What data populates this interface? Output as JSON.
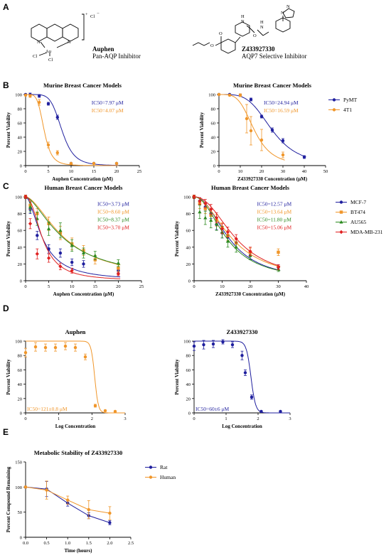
{
  "panels": {
    "A": "A",
    "B": "B",
    "C": "C",
    "D": "D",
    "E": "E"
  },
  "compounds": {
    "auphen": {
      "name": "Auphen",
      "desc": "Pan-AQP Inhibitor",
      "charge": "+",
      "counter": "Cl",
      "atom_au": "Au",
      "atom_cl": "Cl",
      "atom_n": "N"
    },
    "z": {
      "name": "Z433927330",
      "desc": "AQP7 Selective Inhibitor",
      "atom_o": "O",
      "atom_n": "N",
      "atom_h": "H"
    }
  },
  "chart_data": [
    {
      "id": "b1",
      "type": "scatter",
      "title": "Murine Breast Cancer Models",
      "xlabel": "Auphen Concentration (μM)",
      "ylabel": "Percent Viability",
      "xlim": [
        0,
        25
      ],
      "ylim": [
        0,
        100
      ],
      "xticks": [
        0,
        5,
        10,
        15,
        20,
        25
      ],
      "yticks": [
        0,
        20,
        40,
        60,
        80,
        100
      ],
      "series": [
        {
          "name": "PyMT",
          "color": "#1f1f9e",
          "ic50_label": "IC50=7.97 μM",
          "ic50": 7.97,
          "hill": 6,
          "x": [
            0,
            1,
            3,
            5,
            7,
            10,
            15,
            20
          ],
          "y": [
            100,
            100,
            98,
            87,
            68,
            3,
            3,
            3
          ],
          "err": [
            1,
            2,
            2,
            2,
            3,
            1,
            1,
            1
          ]
        },
        {
          "name": "4T1",
          "color": "#f0962a",
          "ic50_label": "IC50=4.07 μM",
          "ic50": 4.07,
          "hill": 5,
          "x": [
            0,
            1,
            3,
            5,
            7,
            10,
            15,
            20
          ],
          "y": [
            99,
            98,
            89,
            29,
            18,
            3,
            3,
            3
          ],
          "err": [
            1,
            2,
            4,
            4,
            3,
            1,
            1,
            1
          ]
        }
      ]
    },
    {
      "id": "b2",
      "type": "scatter",
      "title": "Murine Breast Cancer Models",
      "xlabel": "Z433927330 Concentration (μM)",
      "ylabel": "Percent Viability",
      "xlim": [
        0,
        50
      ],
      "ylim": [
        0,
        100
      ],
      "xticks": [
        0,
        10,
        20,
        30,
        40,
        50
      ],
      "yticks": [
        0,
        20,
        40,
        60,
        80,
        100
      ],
      "legend": true,
      "series": [
        {
          "name": "PyMT",
          "color": "#1f1f9e",
          "ic50_label": "IC50=24.94 μM",
          "ic50": 24.94,
          "hill": 4,
          "x": [
            0,
            5,
            10,
            15,
            20,
            25,
            30,
            40
          ],
          "y": [
            100,
            100,
            99,
            93,
            69,
            50,
            35,
            12
          ],
          "err": [
            1,
            1,
            1,
            2,
            2,
            3,
            3,
            2
          ]
        },
        {
          "name": "4T1",
          "color": "#f0962a",
          "ic50_label": "IC50=16.59 μM",
          "ic50": 16.59,
          "hill": 4,
          "x": [
            0,
            5,
            10,
            13,
            15,
            20,
            30
          ],
          "y": [
            100,
            99,
            99,
            66,
            49,
            36,
            15
          ],
          "err": [
            1,
            1,
            2,
            20,
            20,
            15,
            4
          ]
        }
      ]
    },
    {
      "id": "c1",
      "type": "scatter",
      "title": "Human Breast Cancer Models",
      "xlabel": "Auphen Concentration (μM)",
      "ylabel": "Percent Viability",
      "xlim": [
        0,
        25
      ],
      "ylim": [
        0,
        100
      ],
      "xticks": [
        0,
        5,
        10,
        15,
        20,
        25
      ],
      "yticks": [
        0,
        20,
        40,
        60,
        80,
        100
      ],
      "series": [
        {
          "name": "MCF-7",
          "color": "#1f1f9e",
          "ic50_label": "IC50=3.73 μM",
          "ic50": 3.73,
          "hill": 1.8,
          "x": [
            0,
            1,
            2.5,
            5,
            7.5,
            10,
            12.5,
            20
          ],
          "y": [
            100,
            85,
            54,
            38,
            33,
            22,
            20,
            12
          ],
          "err": [
            2,
            5,
            5,
            5,
            5,
            4,
            4,
            3
          ]
        },
        {
          "name": "BT474",
          "color": "#f0962a",
          "ic50_label": "IC50=8.60 μM",
          "ic50": 8.6,
          "hill": 1.7,
          "x": [
            0,
            1,
            2.5,
            5,
            7.5,
            10,
            12.5,
            15,
            20
          ],
          "y": [
            100,
            90,
            80,
            68,
            57,
            44,
            36,
            25,
            15
          ],
          "err": [
            2,
            5,
            6,
            8,
            8,
            7,
            6,
            5,
            4
          ]
        },
        {
          "name": "AU565",
          "color": "#2e8b22",
          "ic50_label": "IC50=8.37 μM",
          "ic50": 8.37,
          "hill": 1.6,
          "x": [
            0,
            1,
            2.5,
            5,
            7.5,
            10,
            12.5,
            15,
            20
          ],
          "y": [
            100,
            88,
            74,
            62,
            60,
            42,
            33,
            30,
            21
          ],
          "err": [
            2,
            6,
            8,
            8,
            9,
            7,
            6,
            5,
            4
          ]
        },
        {
          "name": "MDA-MB-231",
          "color": "#e02020",
          "ic50_label": "IC50=3.70 μM",
          "ic50": 3.7,
          "hill": 2.2,
          "x": [
            0,
            1,
            2.5,
            5,
            7.5,
            10,
            20
          ],
          "y": [
            100,
            68,
            32,
            27,
            17,
            12,
            8
          ],
          "err": [
            2,
            6,
            6,
            5,
            4,
            3,
            2
          ]
        }
      ]
    },
    {
      "id": "c2",
      "type": "scatter",
      "title": "Human Breast Cancer Models",
      "xlabel": "Z433927330 Concentration (μM)",
      "ylabel": "Percent Viability",
      "xlim": [
        0,
        40
      ],
      "ylim": [
        0,
        100
      ],
      "xticks": [
        0,
        10,
        20,
        30,
        40
      ],
      "yticks": [
        0,
        20,
        40,
        60,
        80,
        100
      ],
      "legend": true,
      "series": [
        {
          "name": "MCF-7",
          "color": "#1f1f9e",
          "ic50_label": "IC50=12.57 μM",
          "ic50": 12.57,
          "hill": 2.2,
          "x": [
            0,
            2,
            4,
            6,
            8,
            10,
            12,
            15,
            20,
            30
          ],
          "y": [
            100,
            95,
            88,
            80,
            67,
            57,
            52,
            45,
            30,
            16
          ],
          "err": [
            2,
            4,
            5,
            6,
            6,
            6,
            6,
            5,
            5,
            3
          ]
        },
        {
          "name": "BT474",
          "color": "#f0962a",
          "ic50_label": "IC50=13.64 μM",
          "ic50": 13.64,
          "hill": 2.0,
          "x": [
            0,
            2,
            4,
            6,
            8,
            10,
            12,
            15,
            20,
            30
          ],
          "y": [
            100,
            92,
            86,
            78,
            72,
            63,
            54,
            45,
            34,
            34
          ],
          "err": [
            2,
            6,
            6,
            7,
            7,
            6,
            6,
            5,
            5,
            4
          ]
        },
        {
          "name": "AU565",
          "color": "#2e8b22",
          "ic50_label": "IC50=11.80 μM",
          "ic50": 11.8,
          "hill": 2.1,
          "x": [
            0,
            2,
            4,
            6,
            8,
            10,
            12,
            15,
            20,
            30
          ],
          "y": [
            100,
            82,
            75,
            72,
            68,
            58,
            47,
            40,
            30,
            14
          ],
          "err": [
            2,
            8,
            8,
            9,
            8,
            7,
            7,
            6,
            5,
            3
          ]
        },
        {
          "name": "MDA-MB-231",
          "color": "#e02020",
          "ic50_label": "IC50=15.06 μM",
          "ic50": 15.06,
          "hill": 2.2,
          "x": [
            0,
            2,
            4,
            6,
            8,
            10,
            12,
            15,
            20,
            30
          ],
          "y": [
            100,
            95,
            92,
            85,
            75,
            62,
            58,
            50,
            35,
            16
          ],
          "err": [
            2,
            4,
            5,
            6,
            6,
            6,
            6,
            5,
            5,
            3
          ]
        }
      ]
    },
    {
      "id": "d1",
      "type": "scatter",
      "title": "Auphen",
      "xlabel": "Log Concentration",
      "ylabel": "Percent Viability",
      "xlim": [
        0,
        3
      ],
      "ylim": [
        0,
        100
      ],
      "xticks": [
        0,
        1,
        2,
        3
      ],
      "yticks": [
        0,
        20,
        40,
        60,
        80,
        100
      ],
      "ic50_pos": "bottom-left",
      "series": [
        {
          "name": "",
          "color": "#f0962a",
          "ic50_label": "IC50=121±0.8 μM",
          "ic50": 2.083,
          "hill": 8,
          "logfit": true,
          "x": [
            0,
            0.3,
            0.6,
            0.9,
            1.2,
            1.5,
            1.8,
            2.1,
            2.4,
            2.7
          ],
          "y": [
            84,
            92,
            91,
            91,
            93,
            91,
            78,
            10,
            3,
            2
          ],
          "err": [
            6,
            6,
            5,
            5,
            5,
            5,
            4,
            2,
            1,
            1
          ]
        }
      ]
    },
    {
      "id": "d2",
      "type": "scatter",
      "title": "Z433927330",
      "xlabel": "Log Concentration",
      "ylabel": "Percent Viability",
      "xlim": [
        0,
        3
      ],
      "ylim": [
        0,
        100
      ],
      "xticks": [
        0,
        1,
        2,
        3
      ],
      "yticks": [
        0,
        20,
        40,
        60,
        80,
        100
      ],
      "ic50_pos": "bottom-left",
      "series": [
        {
          "name": "",
          "color": "#1f1f9e",
          "ic50_label": "IC50=60±6 μM",
          "ic50": 1.778,
          "hill": 6,
          "logfit": true,
          "x": [
            0,
            0.3,
            0.6,
            0.9,
            1.2,
            1.5,
            1.6,
            1.8,
            2.1,
            2.7
          ],
          "y": [
            93,
            95,
            96,
            99,
            95,
            80,
            56,
            22,
            2,
            2
          ],
          "err": [
            6,
            6,
            5,
            3,
            4,
            6,
            4,
            3,
            1,
            1
          ]
        }
      ]
    },
    {
      "id": "e1",
      "type": "line",
      "title": "Metabolic Stability of Z433927330",
      "xlabel": "Time (hours)",
      "ylabel": "Percent Compound Remaining",
      "xlim": [
        0,
        2.5
      ],
      "ylim": [
        0,
        150
      ],
      "xticks": [
        0.0,
        0.5,
        1.0,
        1.5,
        2.0,
        2.5
      ],
      "yticks": [
        0,
        50,
        100,
        150
      ],
      "legend": true,
      "series": [
        {
          "name": "Rat",
          "color": "#1f1f9e",
          "x": [
            0,
            0.5,
            1.0,
            1.5,
            2.0
          ],
          "y": [
            100,
            96,
            68,
            43,
            29
          ],
          "err": [
            2,
            15,
            6,
            6,
            4
          ]
        },
        {
          "name": "Human",
          "color": "#f0962a",
          "x": [
            0,
            0.5,
            1.0,
            1.5,
            2.0
          ],
          "y": [
            100,
            94,
            74,
            55,
            48
          ],
          "err": [
            2,
            18,
            8,
            18,
            13
          ]
        }
      ]
    }
  ]
}
